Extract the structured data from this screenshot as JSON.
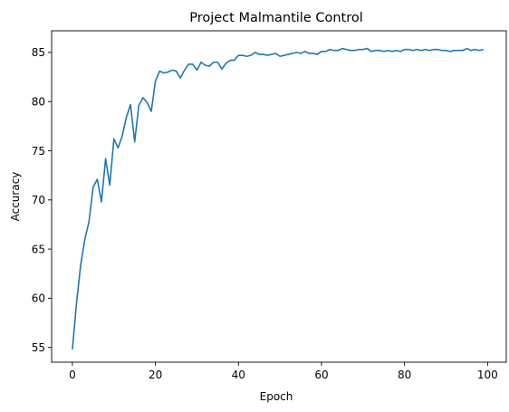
{
  "chart_data": {
    "type": "line",
    "title": "Project Malmantile Control",
    "xlabel": "Epoch",
    "ylabel": "Accuracy",
    "xlim": [
      -5,
      104.5
    ],
    "ylim": [
      53.5,
      87.2
    ],
    "xticks": [
      0,
      20,
      40,
      60,
      80,
      100
    ],
    "yticks": [
      55,
      60,
      65,
      70,
      75,
      80,
      85
    ],
    "grid": false,
    "line_color": "#1f77b4",
    "series": [
      {
        "x": [
          0,
          1,
          2,
          3,
          4,
          5,
          6,
          7,
          8,
          9,
          10,
          11,
          12,
          13,
          14,
          15,
          16,
          17,
          18,
          19,
          20,
          21,
          22,
          23,
          24,
          25,
          26,
          27,
          28,
          29,
          30,
          31,
          32,
          33,
          34,
          35,
          36,
          37,
          38,
          39,
          40,
          41,
          42,
          43,
          44,
          45,
          46,
          47,
          48,
          49,
          50,
          51,
          52,
          53,
          54,
          55,
          56,
          57,
          58,
          59,
          60,
          61,
          62,
          63,
          64,
          65,
          66,
          67,
          68,
          69,
          70,
          71,
          72,
          73,
          74,
          75,
          76,
          77,
          78,
          79,
          80,
          81,
          82,
          83,
          84,
          85,
          86,
          87,
          88,
          89,
          90,
          91,
          92,
          93,
          94,
          95,
          96,
          97,
          98,
          99
        ],
        "values": [
          54.8,
          59.5,
          63.4,
          66.0,
          67.8,
          71.3,
          72.1,
          69.8,
          74.2,
          71.5,
          76.2,
          75.3,
          76.5,
          78.4,
          79.7,
          75.9,
          79.6,
          80.4,
          79.9,
          79.0,
          82.1,
          83.1,
          82.9,
          83.0,
          83.2,
          83.1,
          82.4,
          83.2,
          83.8,
          83.8,
          83.2,
          84.0,
          83.7,
          83.6,
          84.0,
          84.0,
          83.3,
          83.9,
          84.2,
          84.2,
          84.7,
          84.7,
          84.6,
          84.7,
          85.0,
          84.8,
          84.8,
          84.7,
          84.8,
          84.9,
          84.6,
          84.7,
          84.8,
          84.9,
          85.0,
          84.9,
          85.1,
          84.9,
          84.9,
          84.8,
          85.1,
          85.1,
          85.3,
          85.2,
          85.2,
          85.4,
          85.3,
          85.2,
          85.2,
          85.3,
          85.3,
          85.4,
          85.1,
          85.2,
          85.2,
          85.1,
          85.2,
          85.1,
          85.2,
          85.1,
          85.3,
          85.3,
          85.2,
          85.3,
          85.2,
          85.3,
          85.2,
          85.3,
          85.3,
          85.2,
          85.2,
          85.1,
          85.2,
          85.2,
          85.2,
          85.4,
          85.2,
          85.3,
          85.2,
          85.3
        ]
      }
    ]
  }
}
